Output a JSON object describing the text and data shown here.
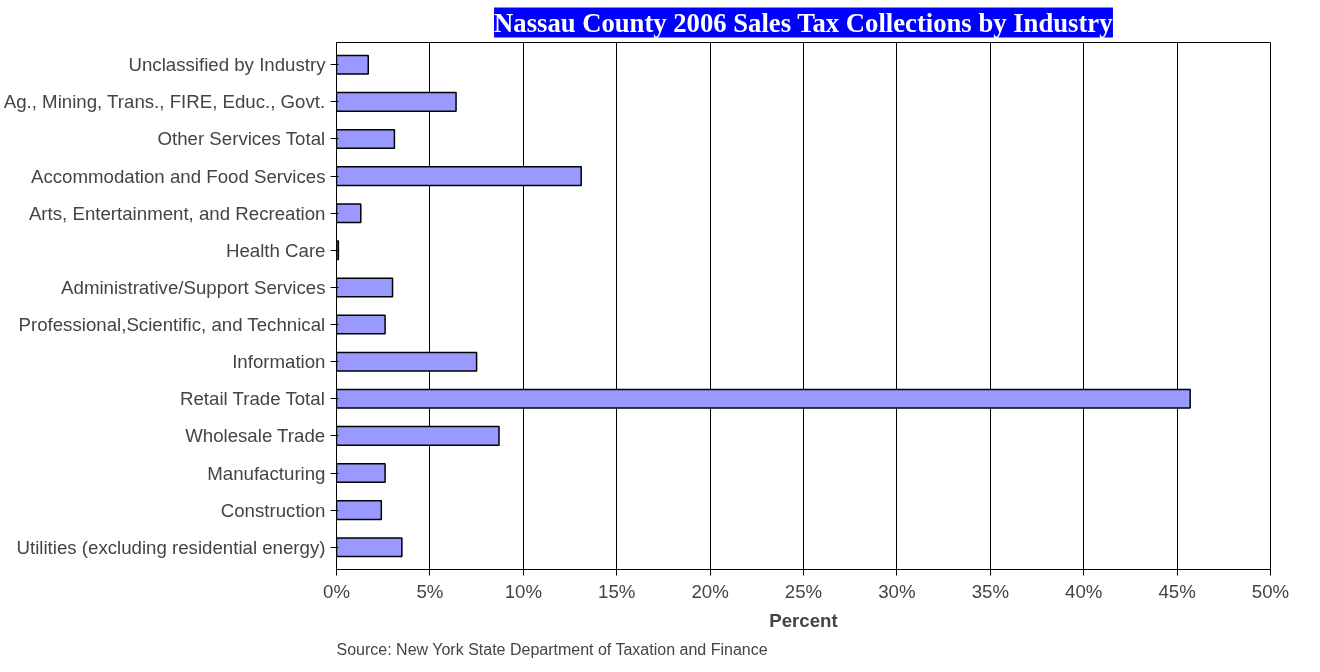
{
  "chart_data": {
    "type": "bar",
    "orientation": "horizontal",
    "title": "Nassau County 2006 Sales Tax Collections by Industry",
    "xlabel": "Percent",
    "categories": [
      "Unclassified by Industry",
      "Ag., Mining, Trans., FIRE, Educ., Govt.",
      "Other Services Total",
      "Accommodation and Food Services",
      "Arts, Entertainment, and Recreation",
      "Health Care",
      "Administrative/Support Services",
      "Professional,Scientific, and Technical",
      "Information",
      "Retail Trade Total",
      "Wholesale Trade",
      "Manufacturing",
      "Construction",
      "Utilities (excluding residential energy)"
    ],
    "values": [
      1.7,
      6.4,
      3.1,
      13.1,
      1.3,
      0.1,
      3.0,
      2.6,
      7.5,
      45.7,
      8.7,
      2.6,
      2.4,
      3.5
    ],
    "color": "#9999ff",
    "xlim": [
      0,
      50
    ],
    "xticks": [
      {
        "value": 0,
        "label": "0%"
      },
      {
        "value": 5,
        "label": "5%"
      },
      {
        "value": 10,
        "label": "10%"
      },
      {
        "value": 15,
        "label": "15%"
      },
      {
        "value": 20,
        "label": "20%"
      },
      {
        "value": 25,
        "label": "25%"
      },
      {
        "value": 30,
        "label": "30%"
      },
      {
        "value": 35,
        "label": "35%"
      },
      {
        "value": 40,
        "label": "40%"
      },
      {
        "value": 45,
        "label": "45%"
      },
      {
        "value": 50,
        "label": "50%"
      }
    ],
    "grid": "x",
    "annotations": [
      "Source: New York State Department of Taxation and Finance"
    ]
  }
}
